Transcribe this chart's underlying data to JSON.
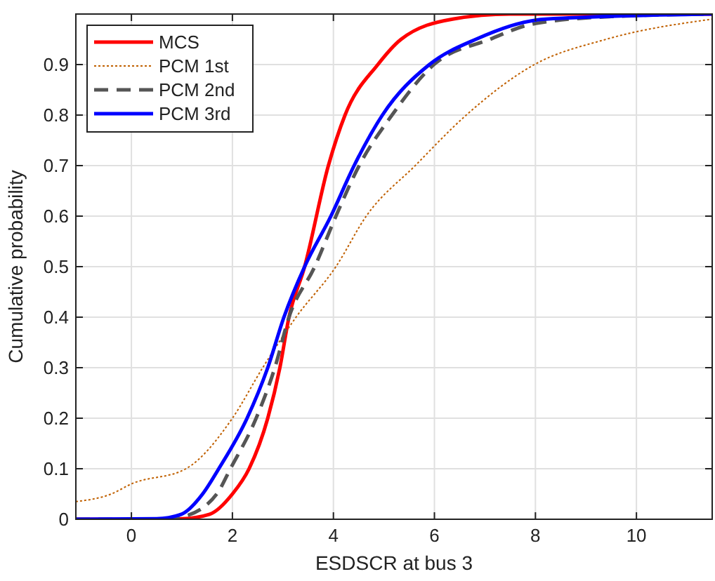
{
  "chart_data": {
    "type": "line",
    "xlabel": "ESDSCR at bus 3",
    "ylabel": "Cumulative probability",
    "xlim": [
      -1.1,
      11.5
    ],
    "ylim": [
      0,
      1
    ],
    "xticks": [
      0,
      2,
      4,
      6,
      8,
      10
    ],
    "yticks": [
      0,
      0.1,
      0.2,
      0.3,
      0.4,
      0.5,
      0.6,
      0.7,
      0.8,
      0.9
    ],
    "grid": true,
    "legend": "top left",
    "marker": "none",
    "series": [
      {
        "name": "MCS",
        "color": "#ff0000",
        "line_style": "solid",
        "x": [
          -1.1,
          0.5,
          1,
          1.55,
          2,
          2.33,
          2.7,
          2.94,
          3.12,
          3.43,
          3.9,
          4.23,
          4.88,
          5.34,
          6.36,
          7.5,
          11.5
        ],
        "values": [
          0,
          0,
          0.001,
          0.01,
          0.05,
          0.1,
          0.2,
          0.3,
          0.4,
          0.5,
          0.7,
          0.8,
          0.9,
          0.95,
          0.99,
          1,
          1
        ]
      },
      {
        "name": "PCM 1st",
        "color": "#c06000",
        "line_style": "dotted",
        "x": [
          -1.1,
          -0.4,
          0,
          1.08,
          2,
          2.6,
          3.26,
          4.05,
          4.65,
          5.62,
          6.63,
          7.98,
          9.4,
          11.5
        ],
        "values": [
          0.035,
          0.05,
          0.07,
          0.1,
          0.2,
          0.3,
          0.4,
          0.5,
          0.6,
          0.7,
          0.8,
          0.9,
          0.95,
          0.99
        ]
      },
      {
        "name": "PCM 2nd",
        "color": "#555555",
        "line_style": "dashed",
        "x": [
          -1.1,
          0.5,
          1,
          1.69,
          1.96,
          2.47,
          2.84,
          3.12,
          3.63,
          4.05,
          4.51,
          5.16,
          5.99,
          7.1,
          7.93,
          9.5,
          11.5
        ],
        "values": [
          0,
          0,
          0.005,
          0.05,
          0.1,
          0.2,
          0.3,
          0.4,
          0.5,
          0.6,
          0.7,
          0.8,
          0.9,
          0.95,
          0.98,
          0.995,
          1
        ]
      },
      {
        "name": "PCM 3rd",
        "color": "#0000ff",
        "line_style": "solid",
        "x": [
          -1.1,
          0.5,
          0.99,
          1.41,
          1.73,
          2.29,
          2.7,
          3.02,
          3.43,
          3.95,
          4.41,
          4.97,
          5.9,
          6.82,
          8.2,
          11.5
        ],
        "values": [
          0,
          0.001,
          0.01,
          0.05,
          0.1,
          0.2,
          0.3,
          0.4,
          0.5,
          0.6,
          0.7,
          0.8,
          0.9,
          0.95,
          0.99,
          1
        ]
      }
    ]
  }
}
